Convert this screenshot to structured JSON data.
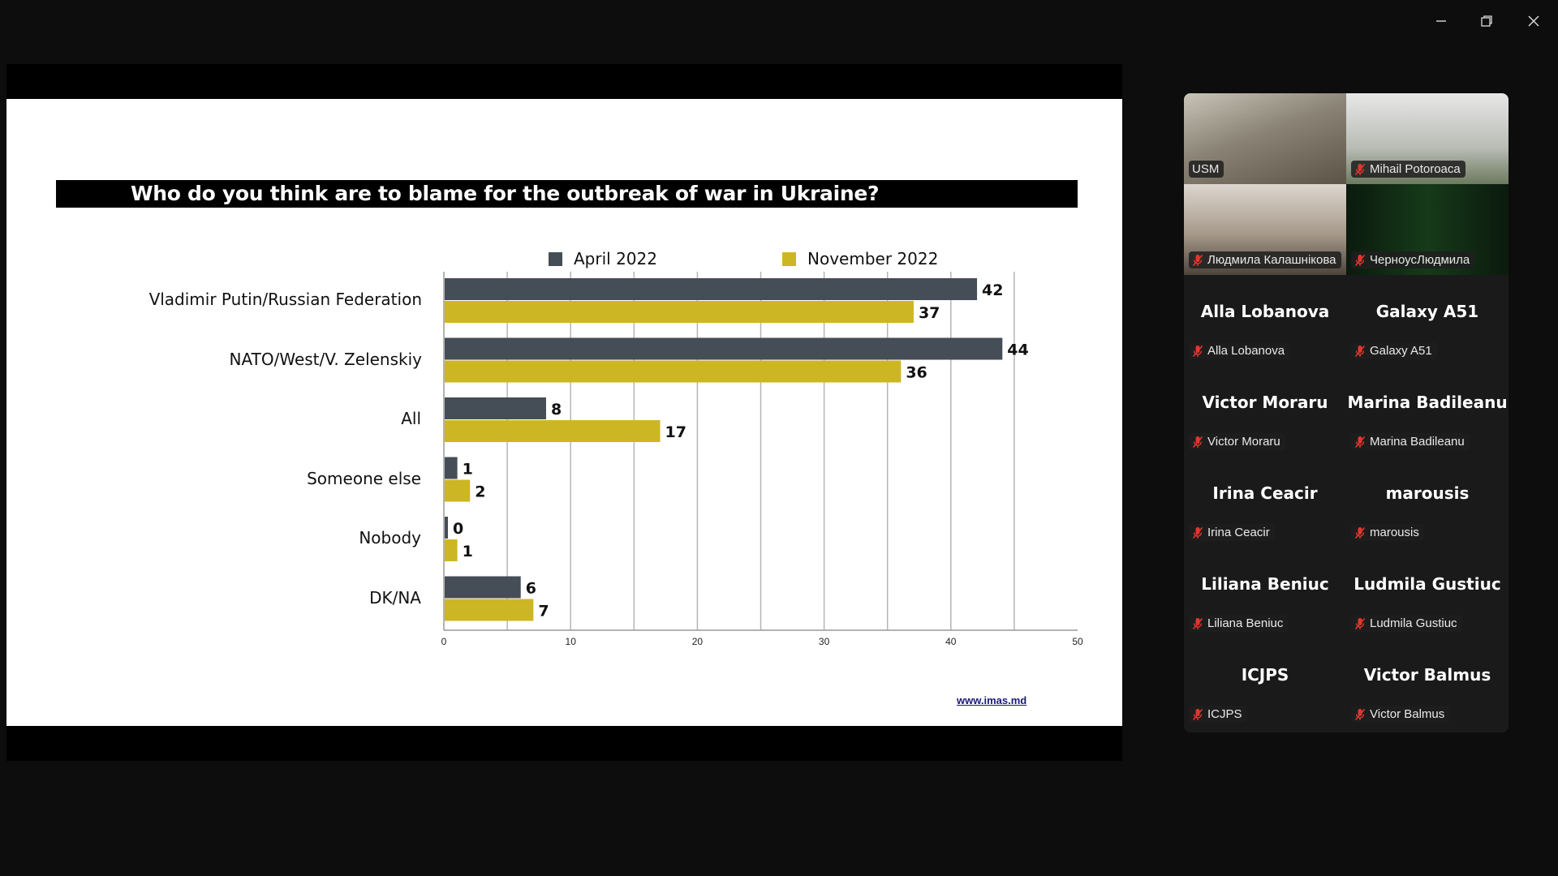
{
  "window": {
    "controls": [
      "minimize-icon",
      "restore-icon",
      "close-icon"
    ]
  },
  "slide": {
    "title": "Who do you think are to blame for the outbreak of war in Ukraine?",
    "source": "www.imas.md"
  },
  "chart_data": {
    "type": "bar",
    "orientation": "horizontal",
    "title": "Who do you think are to blame for the outbreak of war in Ukraine?",
    "categories": [
      "Vladimir Putin/Russian Federation",
      "NATO/West/V. Zelenskiy",
      "All",
      "Someone else",
      "Nobody",
      "DK/NA"
    ],
    "series": [
      {
        "name": "April 2022",
        "color": "#454d57",
        "values": [
          42,
          44,
          8,
          1,
          0,
          6
        ]
      },
      {
        "name": "November 2022",
        "color": "#cdb624",
        "values": [
          37,
          36,
          17,
          2,
          1,
          7
        ]
      }
    ],
    "xlim": [
      0,
      50
    ],
    "xticks": [
      "0",
      "10",
      "20",
      "30",
      "40",
      "50"
    ],
    "grid": true,
    "legend": "top"
  },
  "gallery": {
    "tiles": [
      {
        "label": "USM",
        "type": "video",
        "muted": false
      },
      {
        "label": "Mihail Potoroaca",
        "type": "video",
        "muted": true
      },
      {
        "label": "Людмила Калашнікова",
        "type": "video",
        "muted": true
      },
      {
        "label": "ЧерноусЛюдмила",
        "type": "video",
        "muted": true
      },
      {
        "display": "Alla Lobanova",
        "label": "Alla Lobanova",
        "muted": true
      },
      {
        "display": "Galaxy A51",
        "label": "Galaxy A51",
        "muted": true
      },
      {
        "display": "Victor Moraru",
        "label": "Victor Moraru",
        "muted": true
      },
      {
        "display": "Marina Badileanu",
        "label": "Marina Badileanu",
        "muted": true
      },
      {
        "display": "Irina Ceacir",
        "label": "Irina Ceacir",
        "muted": true
      },
      {
        "display": "marousis",
        "label": "marousis",
        "muted": true
      },
      {
        "display": "Liliana Beniuc",
        "label": "Liliana Beniuc",
        "muted": true
      },
      {
        "display": "Ludmila Gustiuc",
        "label": "Ludmila Gustiuc",
        "muted": true
      },
      {
        "display": "ICJPS",
        "label": "ICJPS",
        "muted": true
      },
      {
        "display": "Victor  Balmus",
        "label": "Victor  Balmus",
        "muted": true
      }
    ]
  }
}
